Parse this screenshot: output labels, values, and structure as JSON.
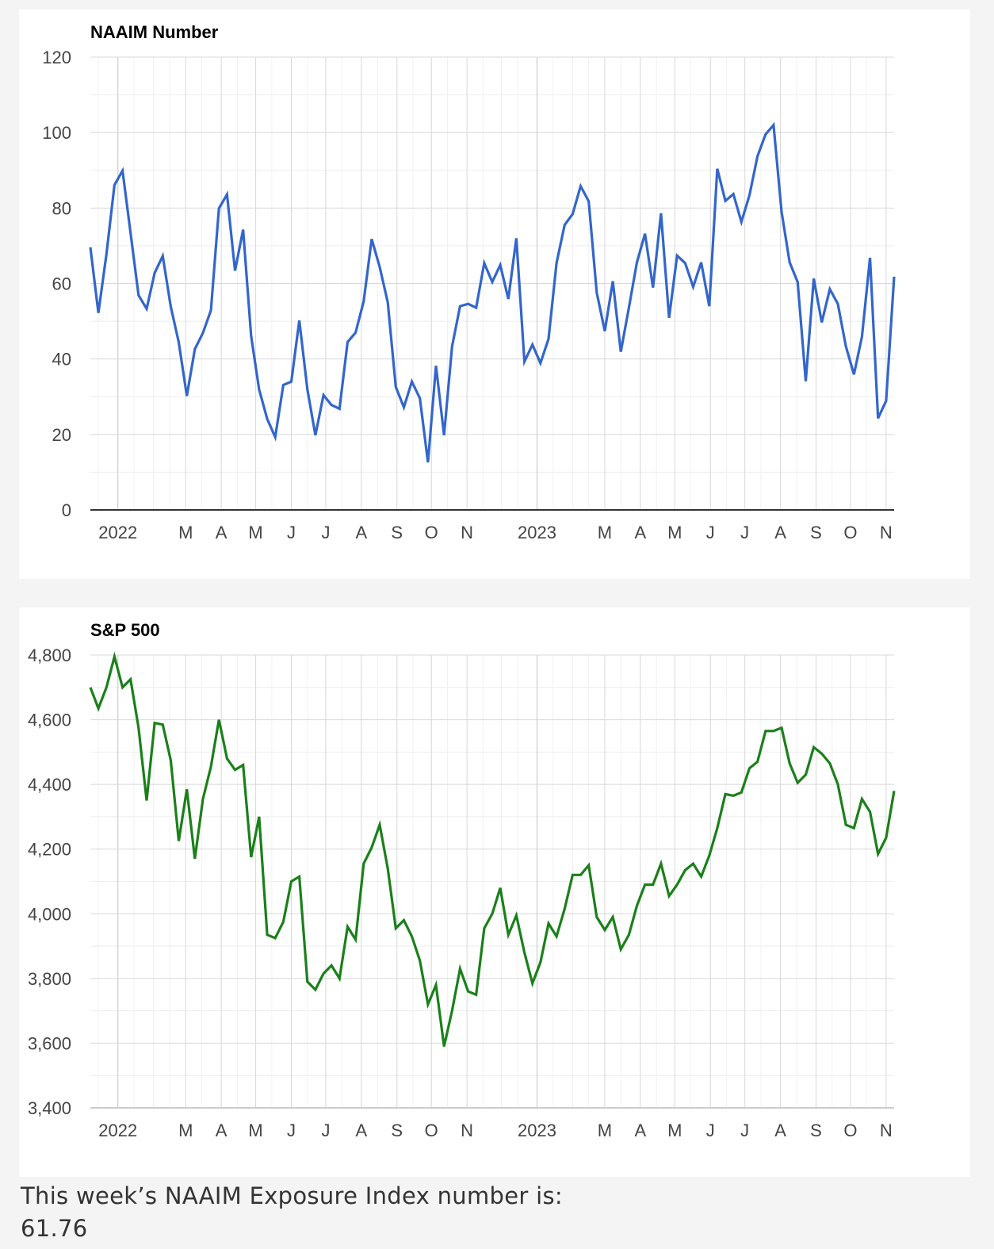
{
  "accent_colors": {
    "naaim_line": "#3366cc",
    "sp_line": "#1a801a",
    "gridline": "#d8d8d8",
    "minor_gridline": "#eeeeee",
    "baseline": "#333333"
  },
  "chart_data": [
    {
      "type": "line",
      "title": "NAAIM Number",
      "xlabel": "",
      "ylabel": "",
      "x_range": [
        "2021-12-08",
        "2023-11-08"
      ],
      "ylim": [
        0,
        120
      ],
      "y_ticks": [
        0,
        20,
        40,
        60,
        80,
        100,
        120
      ],
      "y_tick_labels": [
        "0",
        "20",
        "40",
        "60",
        "80",
        "100",
        "120"
      ],
      "x_ticks": [
        {
          "date": "2022-01-01",
          "label": "2022"
        },
        {
          "date": "2022-03-01",
          "label": "M"
        },
        {
          "date": "2022-04-01",
          "label": "A"
        },
        {
          "date": "2022-05-01",
          "label": "M"
        },
        {
          "date": "2022-06-01",
          "label": "J"
        },
        {
          "date": "2022-07-01",
          "label": "J"
        },
        {
          "date": "2022-08-01",
          "label": "A"
        },
        {
          "date": "2022-09-01",
          "label": "S"
        },
        {
          "date": "2022-10-01",
          "label": "O"
        },
        {
          "date": "2022-11-01",
          "label": "N"
        },
        {
          "date": "2023-01-01",
          "label": "2023"
        },
        {
          "date": "2023-03-01",
          "label": "M"
        },
        {
          "date": "2023-04-01",
          "label": "A"
        },
        {
          "date": "2023-05-01",
          "label": "M"
        },
        {
          "date": "2023-06-01",
          "label": "J"
        },
        {
          "date": "2023-07-01",
          "label": "J"
        },
        {
          "date": "2023-08-01",
          "label": "A"
        },
        {
          "date": "2023-09-01",
          "label": "S"
        },
        {
          "date": "2023-10-01",
          "label": "O"
        },
        {
          "date": "2023-11-01",
          "label": "N"
        }
      ],
      "grid": true,
      "legend": "none",
      "series": [
        {
          "color": "#3366cc",
          "x": [
            "2021-12-08",
            "2021-12-15",
            "2021-12-22",
            "2021-12-29",
            "2022-01-05",
            "2022-01-12",
            "2022-01-19",
            "2022-01-26",
            "2022-02-02",
            "2022-02-09",
            "2022-02-16",
            "2022-02-23",
            "2022-03-02",
            "2022-03-09",
            "2022-03-16",
            "2022-03-23",
            "2022-03-30",
            "2022-04-06",
            "2022-04-13",
            "2022-04-20",
            "2022-04-27",
            "2022-05-04",
            "2022-05-11",
            "2022-05-18",
            "2022-05-25",
            "2022-06-01",
            "2022-06-08",
            "2022-06-15",
            "2022-06-22",
            "2022-06-29",
            "2022-07-06",
            "2022-07-13",
            "2022-07-20",
            "2022-07-27",
            "2022-08-03",
            "2022-08-10",
            "2022-08-17",
            "2022-08-24",
            "2022-08-31",
            "2022-09-07",
            "2022-09-14",
            "2022-09-21",
            "2022-09-28",
            "2022-10-05",
            "2022-10-12",
            "2022-10-19",
            "2022-10-26",
            "2022-11-02",
            "2022-11-09",
            "2022-11-16",
            "2022-11-23",
            "2022-11-30",
            "2022-12-07",
            "2022-12-14",
            "2022-12-21",
            "2022-12-28",
            "2023-01-04",
            "2023-01-11",
            "2023-01-18",
            "2023-01-25",
            "2023-02-01",
            "2023-02-08",
            "2023-02-15",
            "2023-02-22",
            "2023-03-01",
            "2023-03-08",
            "2023-03-15",
            "2023-03-22",
            "2023-03-29",
            "2023-04-05",
            "2023-04-12",
            "2023-04-19",
            "2023-04-26",
            "2023-05-03",
            "2023-05-10",
            "2023-05-17",
            "2023-05-24",
            "2023-05-31",
            "2023-06-07",
            "2023-06-14",
            "2023-06-21",
            "2023-06-28",
            "2023-07-05",
            "2023-07-12",
            "2023-07-19",
            "2023-07-26",
            "2023-08-02",
            "2023-08-09",
            "2023-08-16",
            "2023-08-23",
            "2023-08-30",
            "2023-09-06",
            "2023-09-13",
            "2023-09-20",
            "2023-09-27",
            "2023-10-04",
            "2023-10-11",
            "2023-10-18",
            "2023-10-25",
            "2023-11-01",
            "2023-11-08"
          ],
          "values": [
            69.6,
            52.2,
            67.8,
            86.1,
            89.9,
            73.4,
            56.9,
            53.3,
            62.8,
            67.3,
            53.9,
            44.4,
            30.2,
            42.6,
            46.9,
            52.9,
            79.9,
            83.6,
            63.4,
            74.3,
            46.1,
            31.9,
            24.1,
            19.3,
            33.1,
            34.0,
            50.2,
            31.9,
            19.8,
            30.4,
            27.8,
            26.8,
            44.5,
            47.0,
            55.3,
            71.8,
            64.4,
            55.0,
            32.6,
            27.2,
            34.0,
            29.6,
            12.6,
            38.2,
            19.8,
            43.3,
            54.0,
            54.6,
            53.6,
            65.4,
            60.4,
            64.9,
            55.9,
            72.0,
            39.3,
            43.8,
            38.9,
            45.3,
            65.4,
            75.5,
            78.4,
            85.8,
            81.8,
            57.6,
            47.4,
            60.6,
            41.9,
            53.6,
            65.6,
            73.2,
            58.9,
            78.6,
            50.9,
            67.4,
            65.4,
            59.1,
            65.6,
            54.0,
            90.4,
            81.9,
            83.7,
            76.3,
            83.4,
            93.7,
            99.5,
            102.0,
            79.0,
            65.6,
            60.4,
            34.1,
            61.3,
            49.7,
            58.5,
            54.6,
            43.3,
            35.9,
            45.9,
            66.8,
            24.3,
            28.9,
            61.8
          ]
        }
      ]
    },
    {
      "type": "line",
      "title": "S&P 500",
      "xlabel": "",
      "ylabel": "",
      "x_range": [
        "2021-12-08",
        "2023-11-08"
      ],
      "ylim": [
        3400,
        4800
      ],
      "y_ticks": [
        3400,
        3600,
        3800,
        4000,
        4200,
        4400,
        4600,
        4800
      ],
      "y_tick_labels": [
        "3,400",
        "3,600",
        "3,800",
        "4,000",
        "4,200",
        "4,400",
        "4,600",
        "4,800"
      ],
      "x_ticks": [
        {
          "date": "2022-01-01",
          "label": "2022"
        },
        {
          "date": "2022-03-01",
          "label": "M"
        },
        {
          "date": "2022-04-01",
          "label": "A"
        },
        {
          "date": "2022-05-01",
          "label": "M"
        },
        {
          "date": "2022-06-01",
          "label": "J"
        },
        {
          "date": "2022-07-01",
          "label": "J"
        },
        {
          "date": "2022-08-01",
          "label": "A"
        },
        {
          "date": "2022-09-01",
          "label": "S"
        },
        {
          "date": "2022-10-01",
          "label": "O"
        },
        {
          "date": "2022-11-01",
          "label": "N"
        },
        {
          "date": "2023-01-01",
          "label": "2023"
        },
        {
          "date": "2023-03-01",
          "label": "M"
        },
        {
          "date": "2023-04-01",
          "label": "A"
        },
        {
          "date": "2023-05-01",
          "label": "M"
        },
        {
          "date": "2023-06-01",
          "label": "J"
        },
        {
          "date": "2023-07-01",
          "label": "J"
        },
        {
          "date": "2023-08-01",
          "label": "A"
        },
        {
          "date": "2023-09-01",
          "label": "S"
        },
        {
          "date": "2023-10-01",
          "label": "O"
        },
        {
          "date": "2023-11-01",
          "label": "N"
        }
      ],
      "grid": true,
      "legend": "none",
      "series": [
        {
          "color": "#1a801a",
          "x": [
            "2021-12-08",
            "2021-12-15",
            "2021-12-22",
            "2021-12-29",
            "2022-01-05",
            "2022-01-12",
            "2022-01-19",
            "2022-01-26",
            "2022-02-02",
            "2022-02-09",
            "2022-02-16",
            "2022-02-23",
            "2022-03-02",
            "2022-03-09",
            "2022-03-16",
            "2022-03-23",
            "2022-03-30",
            "2022-04-06",
            "2022-04-13",
            "2022-04-20",
            "2022-04-27",
            "2022-05-04",
            "2022-05-11",
            "2022-05-18",
            "2022-05-25",
            "2022-06-01",
            "2022-06-08",
            "2022-06-15",
            "2022-06-22",
            "2022-06-29",
            "2022-07-06",
            "2022-07-13",
            "2022-07-20",
            "2022-07-27",
            "2022-08-03",
            "2022-08-10",
            "2022-08-17",
            "2022-08-24",
            "2022-08-31",
            "2022-09-07",
            "2022-09-14",
            "2022-09-21",
            "2022-09-28",
            "2022-10-05",
            "2022-10-12",
            "2022-10-19",
            "2022-10-26",
            "2022-11-02",
            "2022-11-09",
            "2022-11-16",
            "2022-11-23",
            "2022-11-30",
            "2022-12-07",
            "2022-12-14",
            "2022-12-21",
            "2022-12-28",
            "2023-01-04",
            "2023-01-11",
            "2023-01-18",
            "2023-01-25",
            "2023-02-01",
            "2023-02-08",
            "2023-02-15",
            "2023-02-22",
            "2023-03-01",
            "2023-03-08",
            "2023-03-15",
            "2023-03-22",
            "2023-03-29",
            "2023-04-05",
            "2023-04-12",
            "2023-04-19",
            "2023-04-26",
            "2023-05-03",
            "2023-05-10",
            "2023-05-17",
            "2023-05-24",
            "2023-05-31",
            "2023-06-07",
            "2023-06-14",
            "2023-06-21",
            "2023-06-28",
            "2023-07-05",
            "2023-07-12",
            "2023-07-19",
            "2023-07-26",
            "2023-08-02",
            "2023-08-09",
            "2023-08-16",
            "2023-08-23",
            "2023-08-30",
            "2023-09-06",
            "2023-09-13",
            "2023-09-20",
            "2023-09-27",
            "2023-10-04",
            "2023-10-11",
            "2023-10-18",
            "2023-10-25",
            "2023-11-01",
            "2023-11-08"
          ],
          "values": [
            4700,
            4635,
            4700,
            4795,
            4700,
            4725,
            4575,
            4350,
            4590,
            4585,
            4475,
            4225,
            4385,
            4170,
            4355,
            4455,
            4600,
            4480,
            4445,
            4460,
            4175,
            4300,
            3935,
            3925,
            3975,
            4100,
            4115,
            3790,
            3765,
            3815,
            3840,
            3800,
            3960,
            3920,
            4155,
            4205,
            4275,
            4140,
            3955,
            3980,
            3930,
            3855,
            3720,
            3780,
            3590,
            3700,
            3830,
            3760,
            3750,
            3955,
            4000,
            4080,
            3935,
            3995,
            3880,
            3785,
            3850,
            3970,
            3930,
            4015,
            4120,
            4120,
            4150,
            3990,
            3950,
            3990,
            3890,
            3935,
            4025,
            4090,
            4090,
            4155,
            4055,
            4090,
            4135,
            4155,
            4115,
            4180,
            4265,
            4370,
            4365,
            4375,
            4450,
            4470,
            4565,
            4565,
            4575,
            4465,
            4405,
            4430,
            4515,
            4495,
            4465,
            4400,
            4275,
            4265,
            4355,
            4315,
            4185,
            4235,
            4380
          ]
        }
      ]
    }
  ],
  "footer": {
    "line1": "This week’s NAAIM Exposure Index number is:",
    "line2": "61.76"
  }
}
